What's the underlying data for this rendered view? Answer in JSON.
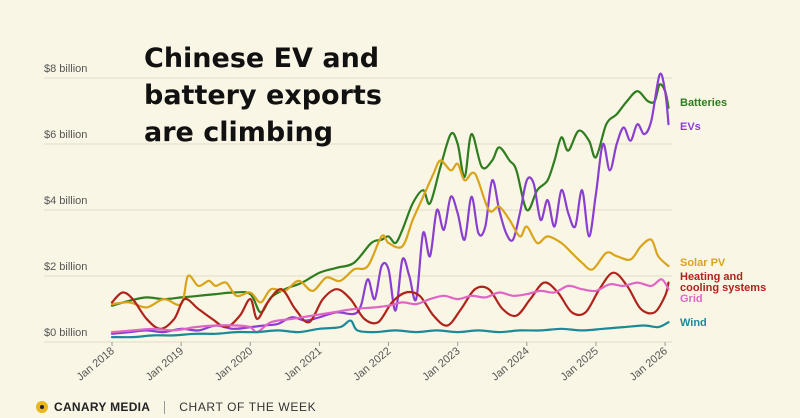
{
  "title_lines": [
    "Chinese EV and",
    "battery exports",
    "are climbing"
  ],
  "footer": {
    "brand": "CANARY MEDIA",
    "label": "CHART OF THE WEEK",
    "logo_icon": "canary-dot-icon"
  },
  "chart_data": {
    "type": "line",
    "title": "Chinese EV and battery exports are climbing",
    "xlabel": "",
    "ylabel": "",
    "xlim": [
      2018,
      2026.1
    ],
    "ylim": [
      0,
      8
    ],
    "yticks": [
      {
        "value": 0,
        "label": "$0 billion"
      },
      {
        "value": 2,
        "label": "$2 billion"
      },
      {
        "value": 4,
        "label": "$4 billion"
      },
      {
        "value": 6,
        "label": "$6 billion"
      },
      {
        "value": 8,
        "label": "$8 billion"
      }
    ],
    "xticks": [
      {
        "value": 2018,
        "label": "Jan 2018"
      },
      {
        "value": 2019,
        "label": "Jan 2019"
      },
      {
        "value": 2020,
        "label": "Jan 2020"
      },
      {
        "value": 2021,
        "label": "Jan 2021"
      },
      {
        "value": 2022,
        "label": "Jan 2022"
      },
      {
        "value": 2023,
        "label": "Jan 2023"
      },
      {
        "value": 2024,
        "label": "Jan 2024"
      },
      {
        "value": 2025,
        "label": "Jan 2025"
      },
      {
        "value": 2026,
        "label": "Jan 2026"
      }
    ],
    "grid": true,
    "legend": "direct labels at right end of lines",
    "series": [
      {
        "name": "Batteries",
        "color": "#2e7d1e",
        "points": [
          [
            2018.0,
            1.1
          ],
          [
            2018.25,
            1.25
          ],
          [
            2018.5,
            1.35
          ],
          [
            2018.75,
            1.3
          ],
          [
            2019.0,
            1.35
          ],
          [
            2019.25,
            1.4
          ],
          [
            2019.5,
            1.45
          ],
          [
            2019.75,
            1.5
          ],
          [
            2020.0,
            1.45
          ],
          [
            2020.15,
            0.9
          ],
          [
            2020.3,
            1.35
          ],
          [
            2020.5,
            1.6
          ],
          [
            2020.75,
            1.8
          ],
          [
            2021.0,
            2.1
          ],
          [
            2021.25,
            2.25
          ],
          [
            2021.5,
            2.4
          ],
          [
            2021.75,
            3.0
          ],
          [
            2021.9,
            3.1
          ],
          [
            2022.0,
            3.2
          ],
          [
            2022.1,
            3.0
          ],
          [
            2022.2,
            3.4
          ],
          [
            2022.35,
            4.2
          ],
          [
            2022.5,
            4.6
          ],
          [
            2022.6,
            4.2
          ],
          [
            2022.75,
            5.3
          ],
          [
            2022.9,
            6.3
          ],
          [
            2023.0,
            6.0
          ],
          [
            2023.1,
            5.0
          ],
          [
            2023.2,
            6.3
          ],
          [
            2023.35,
            5.3
          ],
          [
            2023.5,
            5.5
          ],
          [
            2023.6,
            5.9
          ],
          [
            2023.75,
            5.5
          ],
          [
            2023.85,
            5.2
          ],
          [
            2024.0,
            4.0
          ],
          [
            2024.15,
            4.6
          ],
          [
            2024.3,
            4.9
          ],
          [
            2024.4,
            5.5
          ],
          [
            2024.5,
            6.2
          ],
          [
            2024.6,
            5.8
          ],
          [
            2024.75,
            6.4
          ],
          [
            2024.9,
            6.1
          ],
          [
            2025.0,
            5.6
          ],
          [
            2025.15,
            6.6
          ],
          [
            2025.3,
            6.9
          ],
          [
            2025.45,
            7.3
          ],
          [
            2025.6,
            7.6
          ],
          [
            2025.75,
            7.3
          ],
          [
            2025.85,
            7.3
          ],
          [
            2025.92,
            7.8
          ],
          [
            2026.0,
            7.6
          ],
          [
            2026.05,
            7.1
          ]
        ]
      },
      {
        "name": "EVs",
        "color": "#8a3fd0",
        "points": [
          [
            2018.0,
            0.25
          ],
          [
            2018.25,
            0.3
          ],
          [
            2018.5,
            0.35
          ],
          [
            2018.75,
            0.3
          ],
          [
            2019.0,
            0.4
          ],
          [
            2019.25,
            0.35
          ],
          [
            2019.5,
            0.5
          ],
          [
            2019.75,
            0.4
          ],
          [
            2020.0,
            0.45
          ],
          [
            2020.2,
            0.5
          ],
          [
            2020.4,
            0.55
          ],
          [
            2020.6,
            0.75
          ],
          [
            2020.8,
            0.65
          ],
          [
            2021.0,
            0.75
          ],
          [
            2021.25,
            0.9
          ],
          [
            2021.5,
            0.85
          ],
          [
            2021.6,
            1.1
          ],
          [
            2021.7,
            1.9
          ],
          [
            2021.8,
            1.3
          ],
          [
            2021.9,
            2.3
          ],
          [
            2022.0,
            2.2
          ],
          [
            2022.1,
            0.95
          ],
          [
            2022.2,
            2.5
          ],
          [
            2022.3,
            2.0
          ],
          [
            2022.4,
            1.3
          ],
          [
            2022.5,
            3.3
          ],
          [
            2022.6,
            2.6
          ],
          [
            2022.7,
            4.0
          ],
          [
            2022.8,
            3.4
          ],
          [
            2022.9,
            4.4
          ],
          [
            2023.0,
            3.9
          ],
          [
            2023.1,
            3.1
          ],
          [
            2023.2,
            4.4
          ],
          [
            2023.3,
            3.3
          ],
          [
            2023.4,
            3.5
          ],
          [
            2023.5,
            4.9
          ],
          [
            2023.6,
            4.0
          ],
          [
            2023.7,
            3.3
          ],
          [
            2023.8,
            3.1
          ],
          [
            2023.9,
            3.9
          ],
          [
            2024.0,
            4.9
          ],
          [
            2024.1,
            4.8
          ],
          [
            2024.2,
            3.7
          ],
          [
            2024.3,
            4.3
          ],
          [
            2024.4,
            3.5
          ],
          [
            2024.5,
            4.6
          ],
          [
            2024.6,
            3.9
          ],
          [
            2024.7,
            3.5
          ],
          [
            2024.8,
            4.6
          ],
          [
            2024.9,
            3.2
          ],
          [
            2025.0,
            4.5
          ],
          [
            2025.1,
            6.0
          ],
          [
            2025.2,
            5.2
          ],
          [
            2025.3,
            6.0
          ],
          [
            2025.4,
            6.5
          ],
          [
            2025.5,
            6.1
          ],
          [
            2025.6,
            6.6
          ],
          [
            2025.7,
            6.3
          ],
          [
            2025.8,
            6.7
          ],
          [
            2025.92,
            8.1
          ],
          [
            2026.0,
            7.6
          ],
          [
            2026.05,
            6.6
          ]
        ]
      },
      {
        "name": "Solar PV",
        "color": "#d9a41a",
        "points": [
          [
            2018.0,
            1.15
          ],
          [
            2018.25,
            1.2
          ],
          [
            2018.5,
            1.05
          ],
          [
            2018.75,
            1.3
          ],
          [
            2019.0,
            1.15
          ],
          [
            2019.1,
            2.0
          ],
          [
            2019.25,
            1.7
          ],
          [
            2019.4,
            1.85
          ],
          [
            2019.5,
            1.7
          ],
          [
            2019.65,
            1.8
          ],
          [
            2019.8,
            1.4
          ],
          [
            2020.0,
            1.5
          ],
          [
            2020.15,
            1.2
          ],
          [
            2020.3,
            1.6
          ],
          [
            2020.5,
            1.55
          ],
          [
            2020.7,
            1.85
          ],
          [
            2020.9,
            1.55
          ],
          [
            2021.1,
            1.95
          ],
          [
            2021.3,
            1.85
          ],
          [
            2021.5,
            2.2
          ],
          [
            2021.7,
            2.3
          ],
          [
            2021.9,
            3.2
          ],
          [
            2022.0,
            3.0
          ],
          [
            2022.2,
            2.9
          ],
          [
            2022.35,
            3.7
          ],
          [
            2022.5,
            4.4
          ],
          [
            2022.65,
            5.1
          ],
          [
            2022.75,
            5.5
          ],
          [
            2022.9,
            5.2
          ],
          [
            2023.0,
            5.4
          ],
          [
            2023.1,
            4.9
          ],
          [
            2023.25,
            5.1
          ],
          [
            2023.45,
            4.0
          ],
          [
            2023.6,
            4.1
          ],
          [
            2023.75,
            3.7
          ],
          [
            2023.9,
            3.2
          ],
          [
            2024.0,
            3.5
          ],
          [
            2024.15,
            3.0
          ],
          [
            2024.3,
            3.2
          ],
          [
            2024.5,
            3.0
          ],
          [
            2024.65,
            2.7
          ],
          [
            2024.8,
            2.4
          ],
          [
            2024.95,
            2.2
          ],
          [
            2025.15,
            2.7
          ],
          [
            2025.3,
            2.6
          ],
          [
            2025.5,
            2.5
          ],
          [
            2025.65,
            2.9
          ],
          [
            2025.8,
            3.1
          ],
          [
            2025.9,
            2.6
          ],
          [
            2026.05,
            2.3
          ]
        ]
      },
      {
        "name": "Heating and cooling systems",
        "color": "#b0231b",
        "points": [
          [
            2018.0,
            1.2
          ],
          [
            2018.15,
            1.5
          ],
          [
            2018.3,
            1.3
          ],
          [
            2018.5,
            0.7
          ],
          [
            2018.7,
            0.4
          ],
          [
            2018.9,
            0.7
          ],
          [
            2019.05,
            1.3
          ],
          [
            2019.25,
            1.0
          ],
          [
            2019.45,
            0.7
          ],
          [
            2019.65,
            0.45
          ],
          [
            2019.85,
            0.8
          ],
          [
            2020.0,
            1.3
          ],
          [
            2020.1,
            0.7
          ],
          [
            2020.25,
            1.2
          ],
          [
            2020.45,
            1.6
          ],
          [
            2020.65,
            1.0
          ],
          [
            2020.85,
            0.6
          ],
          [
            2021.05,
            1.3
          ],
          [
            2021.25,
            1.6
          ],
          [
            2021.45,
            1.3
          ],
          [
            2021.65,
            0.7
          ],
          [
            2021.85,
            0.6
          ],
          [
            2022.05,
            1.2
          ],
          [
            2022.25,
            1.5
          ],
          [
            2022.45,
            1.4
          ],
          [
            2022.65,
            0.8
          ],
          [
            2022.85,
            0.5
          ],
          [
            2023.05,
            1.0
          ],
          [
            2023.25,
            1.6
          ],
          [
            2023.45,
            1.6
          ],
          [
            2023.65,
            1.0
          ],
          [
            2023.85,
            0.8
          ],
          [
            2024.05,
            1.3
          ],
          [
            2024.25,
            1.8
          ],
          [
            2024.45,
            1.5
          ],
          [
            2024.65,
            0.9
          ],
          [
            2024.85,
            0.9
          ],
          [
            2025.05,
            1.6
          ],
          [
            2025.25,
            2.1
          ],
          [
            2025.45,
            1.7
          ],
          [
            2025.65,
            1.0
          ],
          [
            2025.85,
            0.9
          ],
          [
            2026.0,
            1.4
          ],
          [
            2026.05,
            1.8
          ]
        ]
      },
      {
        "name": "Grid",
        "color": "#e066c6",
        "points": [
          [
            2018.0,
            0.3
          ],
          [
            2018.3,
            0.35
          ],
          [
            2018.6,
            0.4
          ],
          [
            2018.9,
            0.35
          ],
          [
            2019.2,
            0.45
          ],
          [
            2019.5,
            0.5
          ],
          [
            2019.8,
            0.5
          ],
          [
            2020.0,
            0.45
          ],
          [
            2020.1,
            0.3
          ],
          [
            2020.3,
            0.6
          ],
          [
            2020.6,
            0.7
          ],
          [
            2020.9,
            0.8
          ],
          [
            2021.2,
            0.9
          ],
          [
            2021.5,
            1.0
          ],
          [
            2021.8,
            1.05
          ],
          [
            2022.0,
            1.1
          ],
          [
            2022.2,
            1.2
          ],
          [
            2022.4,
            1.15
          ],
          [
            2022.6,
            1.3
          ],
          [
            2022.8,
            1.4
          ],
          [
            2023.0,
            1.3
          ],
          [
            2023.2,
            1.4
          ],
          [
            2023.4,
            1.35
          ],
          [
            2023.6,
            1.5
          ],
          [
            2023.8,
            1.4
          ],
          [
            2024.0,
            1.45
          ],
          [
            2024.2,
            1.55
          ],
          [
            2024.4,
            1.5
          ],
          [
            2024.6,
            1.7
          ],
          [
            2024.8,
            1.6
          ],
          [
            2025.0,
            1.55
          ],
          [
            2025.2,
            1.75
          ],
          [
            2025.4,
            1.7
          ],
          [
            2025.6,
            1.8
          ],
          [
            2025.8,
            1.7
          ],
          [
            2025.95,
            1.9
          ],
          [
            2026.05,
            1.6
          ]
        ]
      },
      {
        "name": "Wind",
        "color": "#1a8a96",
        "points": [
          [
            2018.0,
            0.15
          ],
          [
            2018.3,
            0.15
          ],
          [
            2018.6,
            0.2
          ],
          [
            2018.9,
            0.2
          ],
          [
            2019.2,
            0.25
          ],
          [
            2019.5,
            0.25
          ],
          [
            2019.8,
            0.3
          ],
          [
            2020.1,
            0.3
          ],
          [
            2020.4,
            0.35
          ],
          [
            2020.7,
            0.3
          ],
          [
            2021.0,
            0.4
          ],
          [
            2021.3,
            0.45
          ],
          [
            2021.45,
            0.65
          ],
          [
            2021.55,
            0.35
          ],
          [
            2021.8,
            0.3
          ],
          [
            2022.1,
            0.35
          ],
          [
            2022.4,
            0.3
          ],
          [
            2022.7,
            0.35
          ],
          [
            2023.0,
            0.3
          ],
          [
            2023.3,
            0.35
          ],
          [
            2023.6,
            0.3
          ],
          [
            2023.9,
            0.35
          ],
          [
            2024.2,
            0.35
          ],
          [
            2024.5,
            0.4
          ],
          [
            2024.8,
            0.35
          ],
          [
            2025.1,
            0.4
          ],
          [
            2025.4,
            0.45
          ],
          [
            2025.7,
            0.5
          ],
          [
            2025.9,
            0.45
          ],
          [
            2026.05,
            0.6
          ]
        ]
      }
    ]
  }
}
